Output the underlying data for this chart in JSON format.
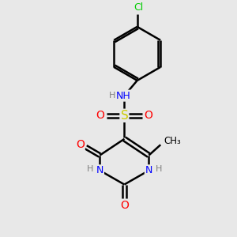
{
  "background_color": "#e8e8e8",
  "atom_colors": {
    "C": "#000000",
    "N": "#0000ff",
    "O": "#ff0000",
    "S": "#cccc00",
    "Cl": "#00cc00",
    "H": "#808080"
  },
  "figsize": [
    3.0,
    3.0
  ],
  "dpi": 100,
  "xlim": [
    0,
    10
  ],
  "ylim": [
    0,
    10
  ]
}
